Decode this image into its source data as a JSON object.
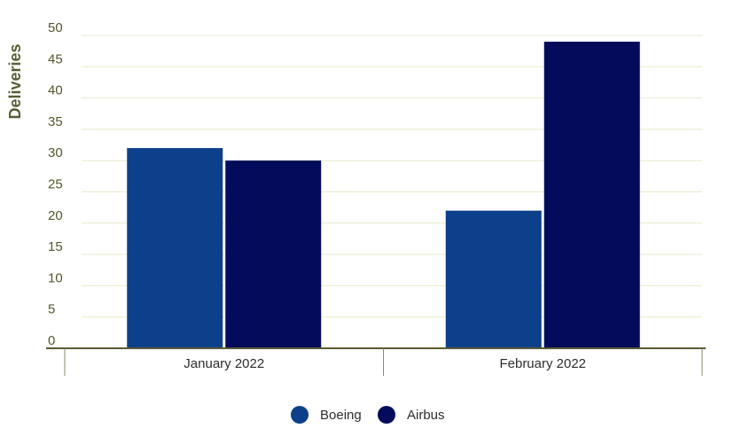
{
  "chart_data": {
    "type": "bar",
    "categories": [
      "January 2022",
      "February 2022"
    ],
    "series": [
      {
        "name": "Boeing",
        "values": [
          32,
          22
        ],
        "color": "#0d408a"
      },
      {
        "name": "Airbus",
        "values": [
          30,
          49
        ],
        "color": "#030b5a"
      }
    ],
    "ylabel": "Deliveries",
    "ylim": [
      0,
      50
    ],
    "yticks": [
      0,
      5,
      10,
      15,
      20,
      25,
      30,
      35,
      40,
      45,
      50
    ],
    "grid": true,
    "legend_position": "bottom-center",
    "colors": {
      "grid": "#e8e8cc",
      "axis": "#5b5b35"
    }
  }
}
